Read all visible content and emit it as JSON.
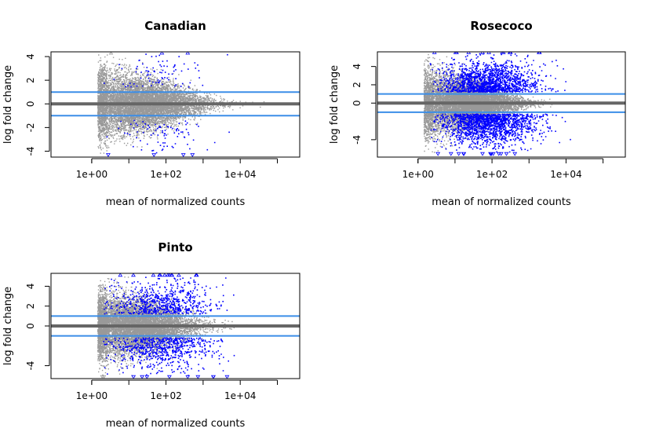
{
  "colors": {
    "background": "#ffffff",
    "points_not_significant": "#999999",
    "points_significant": "#0000ff",
    "zero_line": "#666666",
    "threshold_lines": "#3b8ee8",
    "axis": "#000000"
  },
  "chart_data": [
    {
      "type": "scatter",
      "title": "Canadian",
      "xlabel": "mean of normalized counts",
      "ylabel": "log fold change",
      "x_scale": "log10",
      "xlim": [
        0.08,
        400000
      ],
      "ylim": [
        -4.5,
        4.4
      ],
      "x_ticks": [
        1,
        100,
        10000
      ],
      "x_tick_labels": [
        "1e+00",
        "1e+02",
        "1e+04"
      ],
      "x_minor_ticks": [
        10,
        1000,
        100000
      ],
      "y_ticks": [
        -4,
        -2,
        0,
        2,
        4
      ],
      "y_tick_labels": [
        "-4",
        "-2",
        "0",
        "2",
        "4"
      ],
      "zero_line": 0,
      "threshold_lines": [
        -1,
        1
      ],
      "y_clip": [
        -4.2,
        4.2
      ],
      "grey_cloud": {
        "log10_mean_center": 1.3,
        "log10_mean_sd": 0.85,
        "log10_mean_min": 0.15,
        "log10_mean_max": 4.9,
        "lfc_spread_at_low": 2.8,
        "lfc_spread_at_high": 0.35
      },
      "significant_points": {
        "share": 0.02,
        "min_abs_lfc": 1.4,
        "log10_mean_center": 1.8,
        "log10_mean_sd": 0.6
      }
    },
    {
      "type": "scatter",
      "title": "Rosecoco",
      "xlabel": "mean of normalized counts",
      "ylabel": "log fold change",
      "x_scale": "log10",
      "xlim": [
        0.08,
        400000
      ],
      "ylim": [
        -5.9,
        5.6
      ],
      "x_ticks": [
        1,
        100,
        10000
      ],
      "x_tick_labels": [
        "1e+00",
        "1e+02",
        "1e+04"
      ],
      "x_minor_ticks": [
        10,
        1000,
        100000
      ],
      "y_ticks": [
        -4,
        0,
        2,
        4
      ],
      "y_tick_labels": [
        "-4",
        "0",
        "2",
        "4"
      ],
      "zero_line": 0,
      "threshold_lines": [
        -1,
        1
      ],
      "y_clip": [
        -5.4,
        5.4
      ],
      "grey_cloud": {
        "log10_mean_center": 1.2,
        "log10_mean_sd": 0.75,
        "log10_mean_min": 0.15,
        "log10_mean_max": 3.8,
        "lfc_spread_at_low": 3.4,
        "lfc_spread_at_high": 0.5
      },
      "significant_points": {
        "share": 0.35,
        "min_abs_lfc": 1.2,
        "log10_mean_center": 1.9,
        "log10_mean_sd": 0.65
      }
    },
    {
      "type": "scatter",
      "title": "Pinto",
      "xlabel": "mean of normalized counts",
      "ylabel": "log fold change",
      "x_scale": "log10",
      "xlim": [
        0.08,
        400000
      ],
      "ylim": [
        -5.3,
        5.3
      ],
      "x_ticks": [
        1,
        100,
        10000
      ],
      "x_tick_labels": [
        "1e+00",
        "1e+02",
        "1e+04"
      ],
      "x_minor_ticks": [
        10,
        1000,
        100000
      ],
      "y_ticks": [
        -4,
        0,
        2,
        4
      ],
      "y_tick_labels": [
        "-4",
        "0",
        "2",
        "4"
      ],
      "zero_line": 0,
      "threshold_lines": [
        -1,
        1
      ],
      "y_clip": [
        -5.0,
        5.0
      ],
      "grey_cloud": {
        "log10_mean_center": 1.1,
        "log10_mean_sd": 0.8,
        "log10_mean_min": 0.15,
        "log10_mean_max": 4.8,
        "lfc_spread_at_low": 3.2,
        "lfc_spread_at_high": 0.45
      },
      "significant_points": {
        "share": 0.15,
        "min_abs_lfc": 1.2,
        "log10_mean_center": 1.9,
        "log10_mean_sd": 0.7
      }
    }
  ]
}
